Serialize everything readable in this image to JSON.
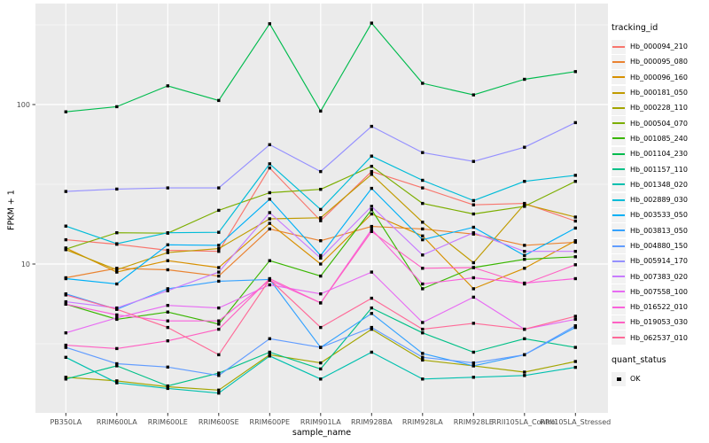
{
  "figure": {
    "background": "#FFFFFF",
    "panel_background": "#EBEBEB",
    "grid_color": "#FFFFFF",
    "tick_label_color": "#4D4D4D",
    "point_color": "#000000"
  },
  "y_axis": {
    "title": "FPKM + 1",
    "tick_labels": [
      "100",
      "10"
    ]
  },
  "x_axis": {
    "title": "sample_name"
  },
  "legend": {
    "tracking_title": "tracking_id",
    "quant_title": "quant_status",
    "quant_ok_label": "OK"
  },
  "chart_data": {
    "type": "line",
    "title": "",
    "xlabel": "sample_name",
    "ylabel": "FPKM + 1",
    "y_scale": "log10",
    "ylim": [
      1.15,
      400
    ],
    "y_major_gridlines": [
      10,
      100
    ],
    "y_minor_gridlines": [
      3.1623,
      31.623,
      316.23
    ],
    "y_tick_values": [
      100,
      10
    ],
    "grid": "on",
    "legend_position": "right",
    "legend_title": "tracking_id",
    "point_marker": "black-square",
    "quant_status": {
      "title": "quant_status",
      "values": [
        "OK"
      ]
    },
    "categories": [
      "PB350LA",
      "RRIM600LA",
      "RRIM600LE",
      "RRIM600SE",
      "RRIM600PE",
      "RRIM901LA",
      "RRIM928BA",
      "RRIM928LA",
      "RRIM928LE",
      "RRII105LA_Control",
      "RRII105LA_Stressed"
    ],
    "series": [
      {
        "name": "Hb_000094_210",
        "color": "#F8766D",
        "values": [
          14.2,
          13.3,
          12.2,
          12,
          40,
          18.7,
          38,
          30,
          23.5,
          24,
          18.6
        ]
      },
      {
        "name": "Hb_000095_080",
        "color": "#EA8331",
        "values": [
          8.2,
          9.4,
          9.2,
          8.4,
          16.6,
          14,
          17.2,
          16.6,
          15.4,
          13.1,
          13.7
        ]
      },
      {
        "name": "Hb_000096_160",
        "color": "#D89000",
        "values": [
          12.6,
          8.9,
          10.5,
          9.5,
          18,
          10,
          20.6,
          15,
          7,
          9.4,
          14
        ]
      },
      {
        "name": "Hb_000181_050",
        "color": "#C09B00",
        "values": [
          12.3,
          9.2,
          11.8,
          12.5,
          19.2,
          19.5,
          36.5,
          18.3,
          10.2,
          23.7,
          19.7
        ]
      },
      {
        "name": "Hb_000228_110",
        "color": "#A3A500",
        "values": [
          1.95,
          1.85,
          1.7,
          1.62,
          2.7,
          2.4,
          3.9,
          2.5,
          2.3,
          2.1,
          2.45
        ]
      },
      {
        "name": "Hb_000504_070",
        "color": "#7CAE00",
        "values": [
          12.4,
          15.7,
          15.6,
          21.7,
          28,
          29.4,
          41,
          24,
          20.6,
          23,
          33
        ]
      },
      {
        "name": "Hb_001085_240",
        "color": "#39B600",
        "values": [
          5.6,
          4.5,
          5,
          4.2,
          10.5,
          8.4,
          21.9,
          7,
          9.5,
          10.7,
          11.1
        ]
      },
      {
        "name": "Hb_001104_230",
        "color": "#00BB4E",
        "values": [
          90,
          97,
          131,
          106,
          321,
          91,
          324,
          136,
          115,
          144,
          161
        ]
      },
      {
        "name": "Hb_001157_110",
        "color": "#00C087",
        "values": [
          1.9,
          2.3,
          1.72,
          2.07,
          2.8,
          2.2,
          5.3,
          3.7,
          2.8,
          3.4,
          3
        ]
      },
      {
        "name": "Hb_001348_020",
        "color": "#00C0AF",
        "values": [
          2.6,
          1.8,
          1.66,
          1.55,
          2.65,
          1.9,
          2.8,
          1.9,
          1.95,
          2,
          2.25
        ]
      },
      {
        "name": "Hb_002889_030",
        "color": "#00BCD8",
        "values": [
          17.3,
          13.4,
          15.7,
          15.8,
          42.5,
          22,
          47.5,
          33.5,
          25,
          33,
          36
        ]
      },
      {
        "name": "Hb_003533_050",
        "color": "#00B0F6",
        "values": [
          8.1,
          7.5,
          13.2,
          13.1,
          25.5,
          11.3,
          29.8,
          14.2,
          17,
          11.3,
          16.8
        ]
      },
      {
        "name": "Hb_003813_050",
        "color": "#35A2FF",
        "values": [
          6.5,
          5.2,
          7,
          7.8,
          8,
          3,
          4.9,
          2.75,
          2.3,
          2.7,
          4
        ]
      },
      {
        "name": "Hb_004880_150",
        "color": "#619CFF",
        "values": [
          3,
          2.37,
          2.26,
          2,
          3.4,
          3,
          4,
          2.6,
          2.4,
          2.7,
          4.1
        ]
      },
      {
        "name": "Hb_005914_170",
        "color": "#9590FF",
        "values": [
          28.5,
          29.5,
          30,
          30,
          56,
          38,
          73,
          50,
          44,
          54,
          77
        ]
      },
      {
        "name": "Hb_007383_020",
        "color": "#C77CFF",
        "values": [
          5.8,
          5.3,
          6.8,
          8.9,
          21,
          10.9,
          23,
          11.4,
          15.7,
          12,
          12
        ]
      },
      {
        "name": "Hb_007558_100",
        "color": "#E76BF3",
        "values": [
          3.7,
          4.6,
          5.5,
          5.3,
          7.4,
          6.5,
          8.9,
          4.3,
          6.2,
          3.9,
          4.5
        ]
      },
      {
        "name": "Hb_016522_010",
        "color": "#FA62DB",
        "values": [
          5.6,
          4.8,
          4.4,
          4.4,
          7.9,
          5.7,
          16.5,
          7.5,
          8.2,
          7.6,
          8.1
        ]
      },
      {
        "name": "Hb_019053_030",
        "color": "#FF61C3",
        "values": [
          3.1,
          2.95,
          3.3,
          3.9,
          8.1,
          5.7,
          16,
          9.4,
          9.5,
          7.5,
          9.9
        ]
      },
      {
        "name": "Hb_062537_010",
        "color": "#FF6A98",
        "values": [
          6.4,
          5.2,
          4,
          2.7,
          8,
          4,
          6.1,
          3.9,
          4.25,
          3.9,
          4.7
        ]
      }
    ]
  }
}
